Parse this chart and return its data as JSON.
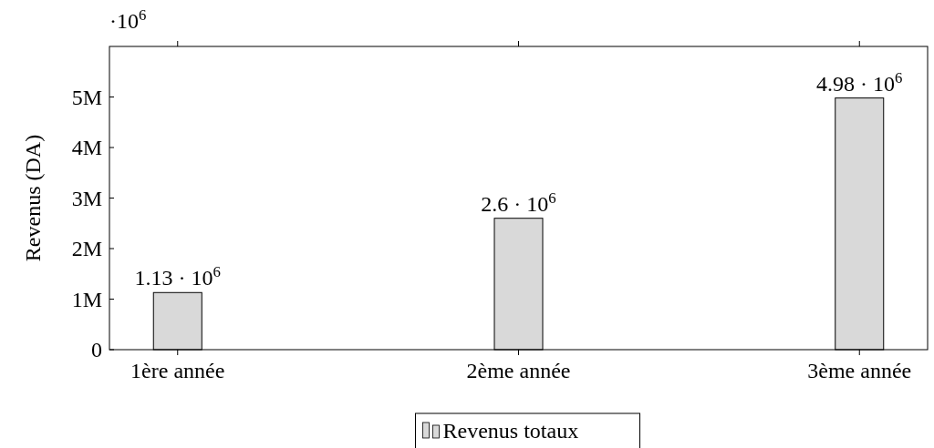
{
  "chart_data": {
    "type": "bar",
    "ylabel": "Revenus (DA)",
    "categories": [
      "1ère année",
      "2ème année",
      "3ème année"
    ],
    "series": [
      {
        "name": "Revenus totaux",
        "color": "#d9d9d9",
        "values": [
          1130000,
          2600000,
          4980000
        ],
        "value_labels": [
          "1.13 · 10$^{6}$",
          "2.6 · 10$^{6}$",
          "4.98 · 10$^{6}$"
        ]
      }
    ],
    "ylim": [
      0,
      6000000
    ],
    "yticks": [
      0,
      {
        "value": 1000000,
        "label": "1M"
      },
      {
        "value": 2000000,
        "label": "2M"
      },
      {
        "value": 3000000,
        "label": "3M"
      },
      {
        "value": 4000000,
        "label": "4M"
      },
      {
        "value": 5000000,
        "label": "5M"
      }
    ],
    "annotations": [
      "·10$^{6}$"
    ],
    "legend": "bottom",
    "grid": false
  }
}
